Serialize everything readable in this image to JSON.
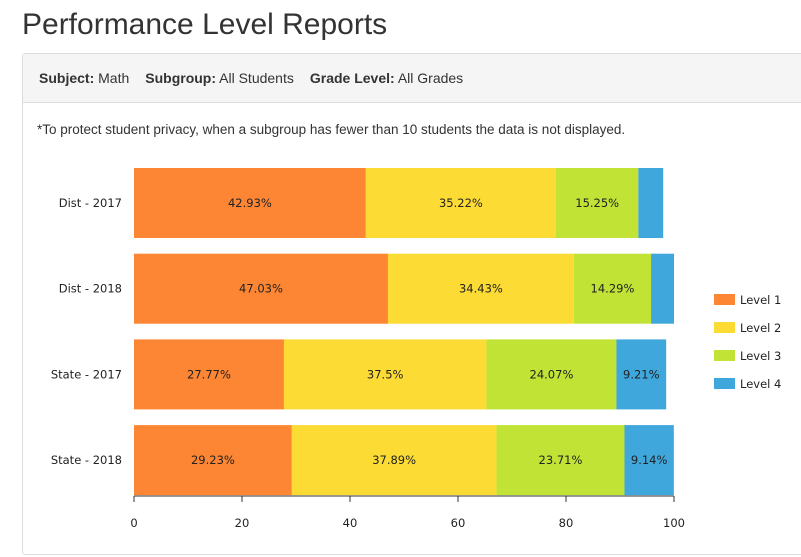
{
  "page": {
    "title": "Performance Level Reports"
  },
  "filters": {
    "subject_label": "Subject:",
    "subject_value": "Math",
    "subgroup_label": "Subgroup:",
    "subgroup_value": "All Students",
    "grade_label": "Grade Level:",
    "grade_value": "All Grades"
  },
  "note": "*To protect student privacy, when a subgroup has fewer than 10 students the data is not displayed.",
  "chart_data": {
    "type": "bar",
    "orientation": "horizontal",
    "stacked": true,
    "categories": [
      "Dist - 2017",
      "Dist - 2018",
      "State - 2017",
      "State - 2018"
    ],
    "series": [
      {
        "name": "Level 1",
        "color": "#fd8635",
        "values": [
          42.93,
          47.03,
          27.77,
          29.23
        ],
        "labels": [
          "42.93%",
          "47.03%",
          "27.77%",
          "29.23%"
        ]
      },
      {
        "name": "Level 2",
        "color": "#fcdb34",
        "values": [
          35.22,
          34.43,
          37.5,
          37.89
        ],
        "labels": [
          "35.22%",
          "34.43%",
          "37.5%",
          "37.89%"
        ]
      },
      {
        "name": "Level 3",
        "color": "#c1e335",
        "values": [
          15.25,
          14.29,
          24.07,
          23.71
        ],
        "labels": [
          "15.25%",
          "14.29%",
          "24.07%",
          "23.71%"
        ]
      },
      {
        "name": "Level 4",
        "color": "#3fa7db",
        "values": [
          4.6,
          4.25,
          9.21,
          9.14
        ],
        "labels": [
          "",
          "",
          "9.21%",
          "9.14%"
        ]
      }
    ],
    "xlim": [
      0,
      100
    ],
    "xticks": [
      "0",
      "20",
      "40",
      "60",
      "80",
      "100"
    ],
    "legend_position": "right",
    "grid": false
  }
}
